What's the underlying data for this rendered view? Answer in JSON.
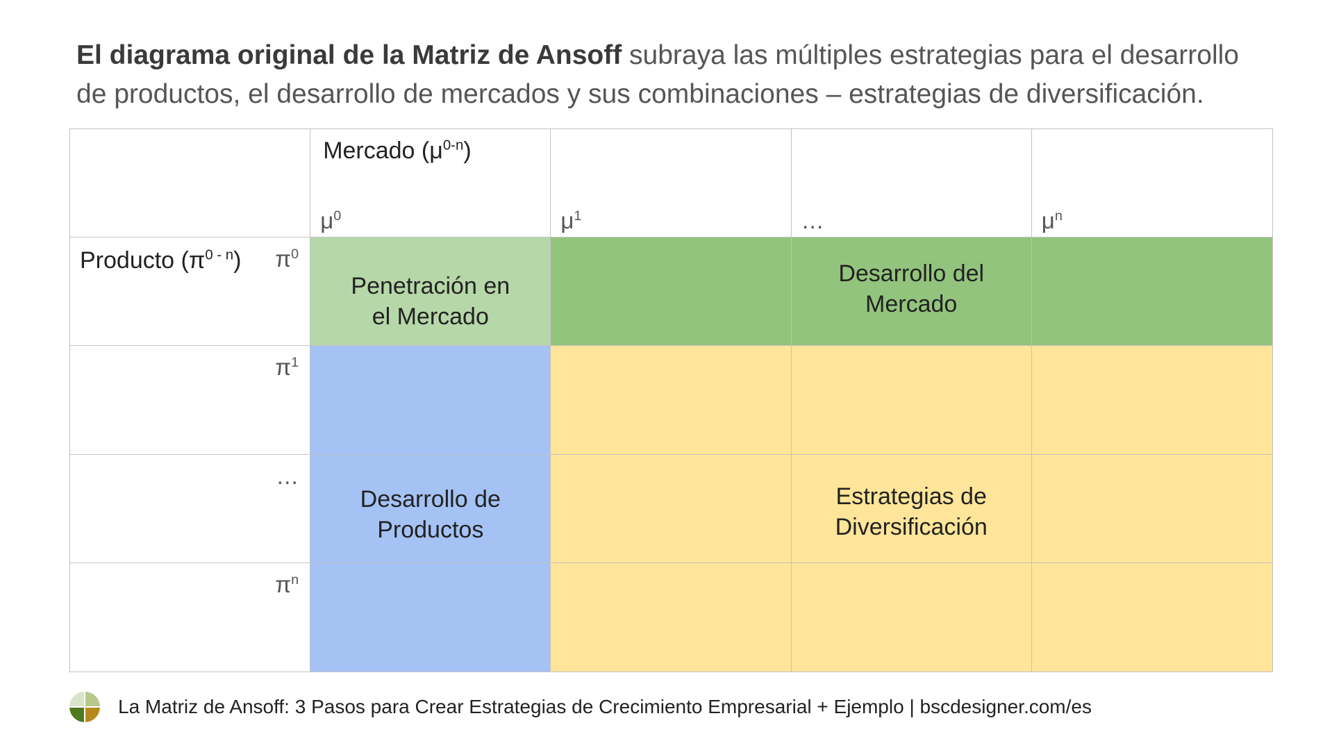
{
  "headline": {
    "bold": "El diagrama original de la Matriz de Ansoff",
    "rest": " subraya las múltiples estrategias para el desarrollo de productos, el desarrollo de mercados y sus combinaciones – estrategias de diversificación."
  },
  "matrix": {
    "market_title": "Mercado (μ",
    "market_title_sup": "0-n",
    "market_title_close": ")",
    "columns": [
      {
        "base": "μ",
        "sup": "0"
      },
      {
        "base": "μ",
        "sup": "1"
      },
      {
        "base": "…",
        "sup": ""
      },
      {
        "base": "μ",
        "sup": "n"
      }
    ],
    "product_title": "Producto (π",
    "product_title_sup": "0 - n",
    "product_title_close": ")",
    "rows": [
      {
        "base": "π",
        "sup": "0"
      },
      {
        "base": "π",
        "sup": "1"
      },
      {
        "base": "…",
        "sup": ""
      },
      {
        "base": "π",
        "sup": "n"
      }
    ],
    "strategies": {
      "penetration": [
        "Penetración en",
        "el Mercado"
      ],
      "market_development": [
        "Desarrollo del",
        "Mercado"
      ],
      "product_development": [
        "Desarrollo de",
        "Productos"
      ],
      "diversification": [
        "Estrategias de",
        "Diversificación"
      ]
    },
    "colors": {
      "penetration": "#b6d7a8",
      "market_development": "#93c47d",
      "product_development": "#a4c2f4",
      "diversification": "#ffe599"
    }
  },
  "footer": {
    "text": "La Matriz de Ansoff: 3 Pasos para Crear Estrategias de Crecimiento Empresarial + Ejemplo | bscdesigner.com/es",
    "logo_colors": [
      "#d9e4c8",
      "#b6c98a",
      "#4e7a1e",
      "#b5891c"
    ]
  }
}
